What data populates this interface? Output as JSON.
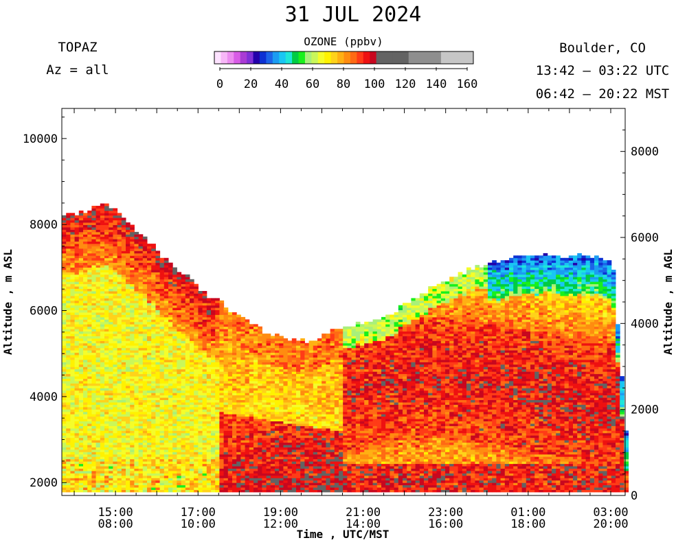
{
  "header": {
    "title": "31 JUL 2024",
    "instrument": "TOPAZ",
    "azimuth": "Az = all",
    "site": "Boulder, CO",
    "utc_range": "13:42 – 03:22 UTC",
    "mst_range": "06:42 – 20:22 MST"
  },
  "chart_data": {
    "type": "heatmap",
    "title": "31 JUL 2024",
    "xlabel": "Time , UTC/MST",
    "ylabel_left": "Altitude , m ASL",
    "ylabel_right": "Altitude , m AGL",
    "x_ticks_utc": [
      "15:00",
      "17:00",
      "19:00",
      "21:00",
      "23:00",
      "01:00",
      "03:00"
    ],
    "x_ticks_mst": [
      "08:00",
      "10:00",
      "12:00",
      "14:00",
      "16:00",
      "18:00",
      "20:00"
    ],
    "x_range_hours_utc": [
      13.7,
      27.35
    ],
    "y_left_ticks": [
      "2000",
      "4000",
      "6000",
      "8000",
      "10000"
    ],
    "y_left_range": [
      1700,
      10700
    ],
    "y_right_ticks": [
      "0",
      "2000",
      "4000",
      "6000",
      "8000"
    ],
    "y_right_range": [
      0,
      9000
    ],
    "ground_altitude_m": 1700,
    "colorbar": {
      "label": "OZONE (ppbv)",
      "ticks": [
        "0",
        "20",
        "40",
        "60",
        "80",
        "100",
        "120",
        "140",
        "160"
      ],
      "range": [
        0,
        160
      ],
      "bins": [
        {
          "from": 0,
          "to": 4,
          "color": "#fde2ff"
        },
        {
          "from": 4,
          "to": 8,
          "color": "#f7b7f7"
        },
        {
          "from": 8,
          "to": 12,
          "color": "#ec8df0"
        },
        {
          "from": 12,
          "to": 16,
          "color": "#d85ce6"
        },
        {
          "from": 16,
          "to": 20,
          "color": "#a93bd4"
        },
        {
          "from": 20,
          "to": 24,
          "color": "#7f2fd6"
        },
        {
          "from": 24,
          "to": 28,
          "color": "#2300aa"
        },
        {
          "from": 28,
          "to": 32,
          "color": "#0d31d3"
        },
        {
          "from": 32,
          "to": 36,
          "color": "#1c64e8"
        },
        {
          "from": 36,
          "to": 40,
          "color": "#1b9cf2"
        },
        {
          "from": 40,
          "to": 44,
          "color": "#19c6f3"
        },
        {
          "from": 44,
          "to": 48,
          "color": "#1ee6d8"
        },
        {
          "from": 48,
          "to": 52,
          "color": "#00cc44"
        },
        {
          "from": 52,
          "to": 56,
          "color": "#18f01c"
        },
        {
          "from": 56,
          "to": 60,
          "color": "#a8f07a"
        },
        {
          "from": 60,
          "to": 64,
          "color": "#c9f75a"
        },
        {
          "from": 64,
          "to": 68,
          "color": "#f5fd2a"
        },
        {
          "from": 68,
          "to": 72,
          "color": "#fff200"
        },
        {
          "from": 72,
          "to": 76,
          "color": "#ffd21a"
        },
        {
          "from": 76,
          "to": 80,
          "color": "#ffb013"
        },
        {
          "from": 80,
          "to": 84,
          "color": "#ff8c10"
        },
        {
          "from": 84,
          "to": 88,
          "color": "#ff6a14"
        },
        {
          "from": 88,
          "to": 92,
          "color": "#ff3b17"
        },
        {
          "from": 92,
          "to": 96,
          "color": "#ee1111"
        },
        {
          "from": 96,
          "to": 100,
          "color": "#c8071f"
        },
        {
          "from": 100,
          "to": 110,
          "color": "#636363"
        },
        {
          "from": 110,
          "to": 120,
          "color": "#636363"
        },
        {
          "from": 120,
          "to": 130,
          "color": "#8e8e8e"
        },
        {
          "from": 130,
          "to": 140,
          "color": "#8e8e8e"
        },
        {
          "from": 140,
          "to": 160,
          "color": "#c6c6c6"
        }
      ]
    },
    "data_top_envelope": {
      "x_hour_utc": [
        13.7,
        14.2,
        14.5,
        14.8,
        15.2,
        15.7,
        16.2,
        16.7,
        17.2,
        17.7,
        18.2,
        18.7,
        19.2,
        19.7,
        20.2,
        20.7,
        21.2,
        21.7,
        22.2,
        22.7,
        23.2,
        23.7,
        24.2,
        24.7,
        25.2,
        25.7,
        26.2,
        26.7,
        27.0,
        27.35
      ],
      "top_altitude_m_asl": [
        8200,
        8250,
        8450,
        8400,
        8100,
        7650,
        7150,
        6750,
        6350,
        6000,
        5700,
        5400,
        5300,
        5250,
        5500,
        5650,
        5750,
        5950,
        6250,
        6550,
        6800,
        7000,
        7100,
        7200,
        7250,
        7250,
        7250,
        7200,
        7100,
        2900
      ]
    },
    "regions": [
      {
        "time_utc": "13:42-17:00",
        "altitude_m_asl": "1800-7000",
        "ozone_ppbv": "60-75"
      },
      {
        "time_utc": "13:42-17:30",
        "altitude_m_asl": "7000-8400",
        "ozone_ppbv": "80-100"
      },
      {
        "time_utc": "19:00-21:00",
        "altitude_m_asl": "1800-3500",
        "ozone_ppbv": "90-110"
      },
      {
        "time_utc": "21:00-03:00",
        "altitude_m_asl": "2500-5200",
        "ozone_ppbv": "90-100"
      },
      {
        "time_utc": "00:00-03:00",
        "altitude_m_asl": "6500-7200",
        "ozone_ppbv": "25-45"
      }
    ]
  }
}
